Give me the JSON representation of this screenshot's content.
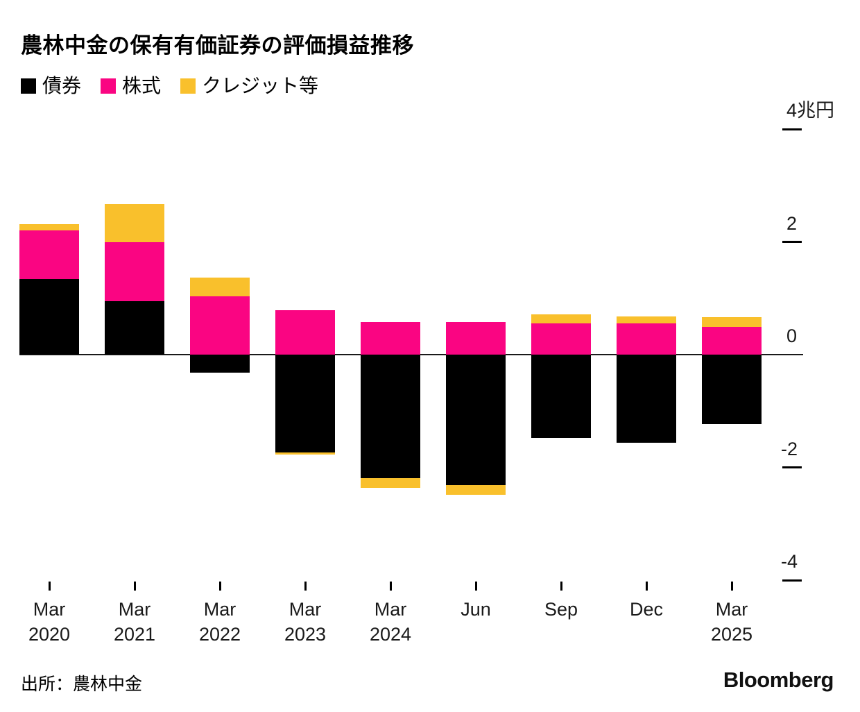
{
  "title": "農林中金の保有有価証券の評価損益推移",
  "source": "出所：農林中金",
  "branding": "Bloomberg",
  "chart_data": {
    "type": "bar",
    "stacked": true,
    "title": "農林中金の保有有価証券の評価損益推移",
    "unit_label": "兆円",
    "ylabel": "",
    "xlabel": "",
    "ylim": [
      -4,
      4
    ],
    "grid": false,
    "legend_position": "top-left",
    "y_ticks": [
      {
        "value": 4,
        "label": "4兆円"
      },
      {
        "value": 2,
        "label": "2"
      },
      {
        "value": 0,
        "label": "0"
      },
      {
        "value": -2,
        "label": "-2"
      },
      {
        "value": -4,
        "label": "-4"
      }
    ],
    "categories": [
      {
        "label": "Mar",
        "sublabel": "2020"
      },
      {
        "label": "Mar",
        "sublabel": "2021"
      },
      {
        "label": "Mar",
        "sublabel": "2022"
      },
      {
        "label": "Mar",
        "sublabel": "2023"
      },
      {
        "label": "Mar",
        "sublabel": "2024"
      },
      {
        "label": "Jun",
        "sublabel": ""
      },
      {
        "label": "Sep",
        "sublabel": ""
      },
      {
        "label": "Dec",
        "sublabel": ""
      },
      {
        "label": "Mar",
        "sublabel": "2025"
      }
    ],
    "series": [
      {
        "id": "bonds",
        "name": "債券",
        "color": "#000000",
        "values": [
          1.34,
          0.95,
          -0.32,
          -1.73,
          -2.19,
          -2.31,
          -1.48,
          -1.56,
          -1.23
        ]
      },
      {
        "id": "stocks",
        "name": "株式",
        "color": "#fa0582",
        "values": [
          0.86,
          1.05,
          1.04,
          0.79,
          0.58,
          0.58,
          0.55,
          0.56,
          0.49
        ]
      },
      {
        "id": "credit",
        "name": "クレジット等",
        "color": "#f9c02c",
        "values": [
          0.12,
          0.67,
          0.33,
          -0.04,
          -0.17,
          -0.17,
          0.16,
          0.12,
          0.18
        ]
      }
    ]
  }
}
